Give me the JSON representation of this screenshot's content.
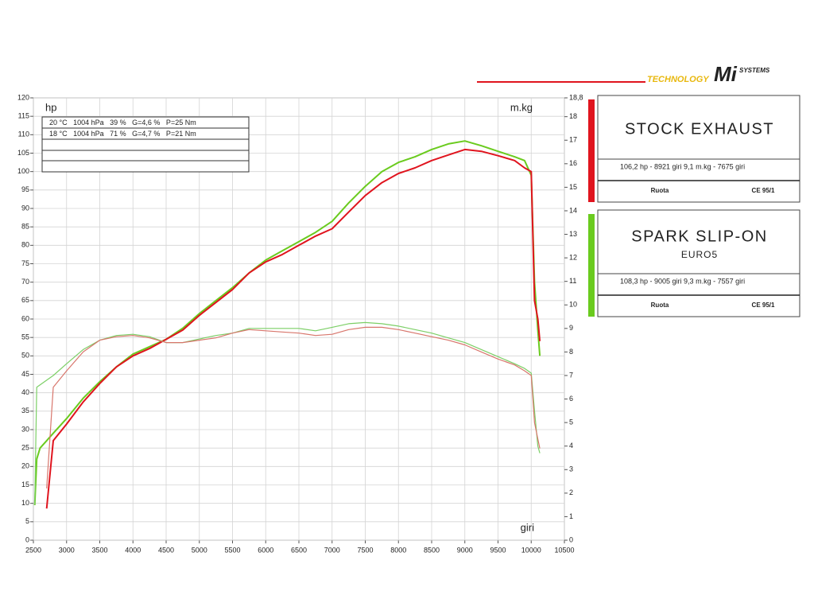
{
  "chart_data": {
    "type": "line",
    "y_label": "hp",
    "y2_label": "m.kg",
    "x_label": "giri",
    "x": [
      2520,
      2550,
      2600,
      2700,
      2800,
      3000,
      3250,
      3500,
      3750,
      4000,
      4250,
      4500,
      4750,
      5000,
      5250,
      5500,
      5750,
      6000,
      6250,
      6500,
      6750,
      7000,
      7250,
      7500,
      7750,
      8000,
      8250,
      8500,
      8750,
      9000,
      9250,
      9500,
      9750,
      9900,
      10000,
      10050,
      10100,
      10130
    ],
    "series": [
      {
        "name": "SPARK SLIP-ON",
        "color": "#6acb1e",
        "width": 2,
        "values": [
          9.5,
          22,
          25,
          27,
          29,
          33,
          38.5,
          43,
          47,
          50.5,
          52.5,
          54.5,
          57.5,
          61.5,
          65,
          68.5,
          72.5,
          76,
          78.5,
          81,
          83.5,
          86.5,
          91.5,
          96,
          100,
          102.5,
          104,
          106,
          107.5,
          108.3,
          107,
          105.5,
          104,
          103,
          99,
          70,
          57,
          50
        ]
      },
      {
        "name": "STOCK EXHAUST",
        "color": "#e0141e",
        "width": 2,
        "values": [
          null,
          null,
          null,
          8.6,
          27,
          31.5,
          37.5,
          42.5,
          47,
          50,
          52,
          54.5,
          57,
          61,
          64.5,
          68,
          72.5,
          75.5,
          77.5,
          80,
          82.5,
          84.5,
          89,
          93.5,
          97,
          99.5,
          101,
          103,
          104.5,
          106,
          105.5,
          104.3,
          103,
          101,
          100,
          65,
          60,
          54
        ]
      },
      {
        "color": "#7ccf66",
        "width": 1.2,
        "axis": "y2",
        "values": [
          1.5,
          6.5,
          6.6,
          6.8,
          7.0,
          7.5,
          8.1,
          8.5,
          8.7,
          8.75,
          8.65,
          8.4,
          8.4,
          8.55,
          8.7,
          8.8,
          9.0,
          9.0,
          9.0,
          9.0,
          8.9,
          9.05,
          9.2,
          9.25,
          9.2,
          9.1,
          8.95,
          8.8,
          8.6,
          8.4,
          8.1,
          7.8,
          7.5,
          7.3,
          7.1,
          5.5,
          4.0,
          3.7
        ]
      },
      {
        "color": "#d8766c",
        "width": 1.2,
        "axis": "y2",
        "values": [
          null,
          null,
          null,
          2.2,
          6.5,
          7.2,
          8.0,
          8.5,
          8.65,
          8.7,
          8.6,
          8.4,
          8.4,
          8.5,
          8.6,
          8.8,
          8.95,
          8.9,
          8.85,
          8.8,
          8.7,
          8.75,
          8.95,
          9.05,
          9.05,
          8.95,
          8.8,
          8.65,
          8.5,
          8.3,
          8.0,
          7.7,
          7.45,
          7.2,
          7.0,
          5.0,
          4.3,
          3.9
        ]
      }
    ],
    "xlim": [
      2500,
      10500
    ],
    "xticks": [
      2500,
      3000,
      3500,
      4000,
      4500,
      5000,
      5500,
      6000,
      6500,
      7000,
      7500,
      8000,
      8500,
      9000,
      9500,
      10000,
      10500
    ],
    "ylim": [
      0,
      120
    ],
    "yticks": [
      0,
      5,
      10,
      15,
      20,
      25,
      30,
      35,
      40,
      45,
      50,
      55,
      60,
      65,
      70,
      75,
      80,
      85,
      90,
      95,
      100,
      105,
      110,
      115,
      120
    ],
    "y2lim": [
      0,
      18.8
    ],
    "y2ticks": [
      0,
      1,
      2,
      3,
      4,
      5,
      6,
      7,
      8,
      9,
      10,
      11,
      12,
      13,
      14,
      15,
      16,
      17,
      18,
      {
        "value": 18.8,
        "label": "18,8"
      }
    ],
    "grid": true,
    "conditions": [
      "20 °C   1004 hPa   39 %   G=4,6 %   P=25 Nm",
      "18 °C   1004 hPa   71 %   G=4,7 %   P=21 Nm"
    ],
    "panels": [
      {
        "series": 1,
        "stats": "106,2 hp - 8921 giri      9,1 m.kg - 7675 giri",
        "left": "Ruota",
        "right": "CE 95/1"
      },
      {
        "series": 0,
        "subtitle": "EURO5",
        "stats": "108,3 hp - 9005 giri      9,3 m.kg - 7557 giri",
        "left": "Ruota",
        "right": "CE 95/1"
      }
    ]
  },
  "logo": {
    "text": "TECHNOLOGY",
    "mark": "Mi",
    "brand": "SYSTEMS"
  }
}
